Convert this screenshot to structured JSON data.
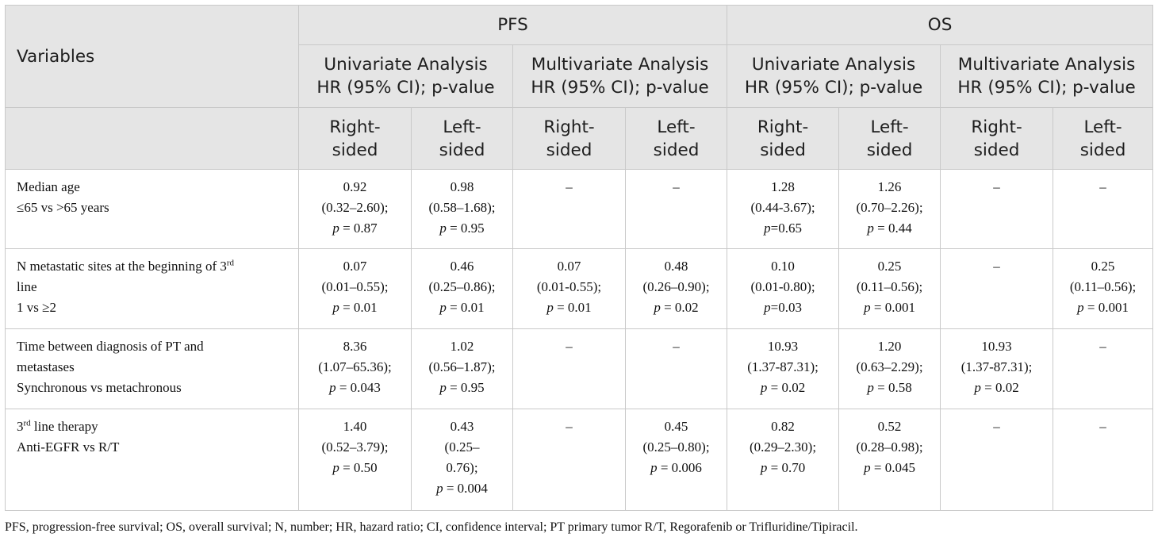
{
  "header": {
    "variables": "Variables",
    "pfs": "PFS",
    "os": "OS",
    "uni_line1": "Univariate Analysis",
    "multi_line1": "Multivariate Analysis",
    "hr_line2": "HR (95% CI); p-value",
    "right_1": "Right-",
    "right_2": "sided",
    "left_1": "Left-",
    "left_2": "sided"
  },
  "rows": [
    {
      "var": [
        "Median age",
        "≤65 vs >65 years"
      ],
      "cells": [
        [
          "0.92",
          "(0.32–2.60);",
          "p = 0.87"
        ],
        [
          "0.98",
          "(0.58–1.68);",
          "p = 0.95"
        ],
        [
          "–"
        ],
        [
          "–"
        ],
        [
          "1.28",
          "(0.44-3.67);",
          "p=0.65"
        ],
        [
          "1.26",
          "(0.70–2.26);",
          "p = 0.44"
        ],
        [
          "–"
        ],
        [
          "–"
        ]
      ]
    },
    {
      "var_a": "N metastatic sites at the beginning of 3",
      "var_sup": "rd",
      "var_b": "line",
      "var_c": "1 vs ≥2",
      "cells": [
        [
          "0.07",
          "(0.01–0.55);",
          "p = 0.01"
        ],
        [
          "0.46",
          "(0.25–0.86);",
          "p = 0.01"
        ],
        [
          "0.07",
          "(0.01-0.55);",
          "p = 0.01"
        ],
        [
          "0.48",
          "(0.26–0.90);",
          "p = 0.02"
        ],
        [
          "0.10",
          "(0.01-0.80);",
          "p=0.03"
        ],
        [
          "0.25",
          "(0.11–0.56);",
          "p = 0.001"
        ],
        [
          "–"
        ],
        [
          "0.25",
          "(0.11–0.56);",
          "p = 0.001"
        ]
      ]
    },
    {
      "var": [
        "Time between diagnosis of PT and",
        "metastases",
        "Synchronous vs metachronous"
      ],
      "cells": [
        [
          "8.36",
          "(1.07–65.36);",
          "p = 0.043"
        ],
        [
          "1.02",
          "(0.56–1.87);",
          "p = 0.95"
        ],
        [
          "–"
        ],
        [
          "–"
        ],
        [
          "10.93",
          "(1.37-87.31);",
          "p = 0.02"
        ],
        [
          "1.20",
          "(0.63–2.29);",
          "p = 0.58"
        ],
        [
          "10.93",
          "(1.37-87.31);",
          "p = 0.02"
        ],
        [
          "–"
        ]
      ]
    },
    {
      "var_a": "3",
      "var_sup": "rd",
      "var_b": " line therapy",
      "var_c": "Anti-EGFR vs R/T",
      "cells": [
        [
          "1.40",
          "(0.52–3.79);",
          "p = 0.50"
        ],
        [
          "0.43",
          "(0.25–",
          "0.76);",
          "p = 0.004"
        ],
        [
          "–"
        ],
        [
          "0.45",
          "(0.25–0.80);",
          "p = 0.006"
        ],
        [
          "0.82",
          "(0.29–2.30);",
          "p = 0.70"
        ],
        [
          "0.52",
          "(0.28–0.98);",
          "p = 0.045"
        ],
        [
          "–"
        ],
        [
          "–"
        ]
      ]
    }
  ],
  "footnote": "PFS, progression-free survival; OS, overall survival; N, number; HR, hazard ratio; CI, confidence interval; PT primary tumor R/T, Regorafenib or Trifluridine/Tipiracil."
}
